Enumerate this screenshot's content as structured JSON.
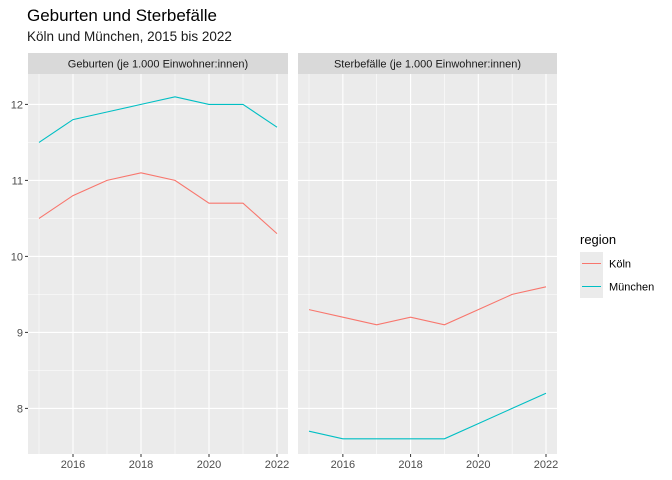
{
  "chart_data": {
    "type": "line",
    "title": "Geburten und Sterbefälle",
    "subtitle": "Köln und München, 2015 bis 2022",
    "x": [
      2015,
      2016,
      2017,
      2018,
      2019,
      2020,
      2021,
      2022
    ],
    "xticks": [
      2016,
      2018,
      2020,
      2022
    ],
    "ylim": [
      7.4,
      12.4
    ],
    "yticks": [
      8,
      9,
      10,
      11,
      12
    ],
    "grid": true,
    "legend": {
      "title": "region",
      "placement": "right",
      "entries": [
        {
          "label": "Köln",
          "color": "#F8766D"
        },
        {
          "label": "München",
          "color": "#00BFC4"
        }
      ]
    },
    "facets": [
      {
        "strip": "Geburten (je 1.000 Einwohner:innen)",
        "series": [
          {
            "name": "Köln",
            "color": "#F8766D",
            "values": [
              10.5,
              10.8,
              11.0,
              11.1,
              11.0,
              10.7,
              10.7,
              10.3
            ]
          },
          {
            "name": "München",
            "color": "#00BFC4",
            "values": [
              11.5,
              11.8,
              11.9,
              12.0,
              12.1,
              12.0,
              12.0,
              11.7
            ]
          }
        ]
      },
      {
        "strip": "Sterbefälle (je 1.000 Einwohner:innen)",
        "series": [
          {
            "name": "Köln",
            "color": "#F8766D",
            "values": [
              9.3,
              9.2,
              9.1,
              9.2,
              9.1,
              9.3,
              9.5,
              9.6
            ]
          },
          {
            "name": "München",
            "color": "#00BFC4",
            "values": [
              7.7,
              7.6,
              7.6,
              7.6,
              7.6,
              7.8,
              8.0,
              8.2
            ]
          }
        ]
      }
    ]
  }
}
